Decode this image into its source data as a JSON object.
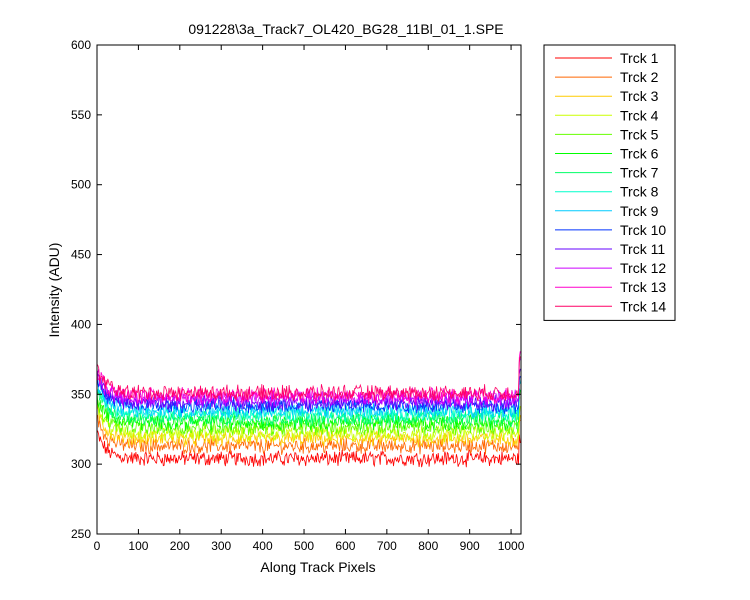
{
  "chart_data": {
    "type": "line",
    "title": "091228\\3a_Track7_OL420_BG28_11Bl_01_1.SPE",
    "xlabel": "Along Track Pixels",
    "ylabel": "Intensity (ADU)",
    "xlim": [
      0,
      1024
    ],
    "ylim": [
      250,
      600
    ],
    "xticks": [
      "0",
      "100",
      "200",
      "300",
      "400",
      "500",
      "600",
      "700",
      "800",
      "900",
      "1000"
    ],
    "yticks": [
      "250",
      "300",
      "350",
      "400",
      "450",
      "500",
      "550",
      "600"
    ],
    "legend_position": "outside-top-right",
    "grid": false,
    "series": [
      {
        "name": "Trck 1",
        "color": "#ff0000",
        "baseline": 304,
        "start": 322
      },
      {
        "name": "Trck 2",
        "color": "#ff6600",
        "baseline": 313,
        "start": 333
      },
      {
        "name": "Trck 3",
        "color": "#ffcc00",
        "baseline": 318,
        "start": 338
      },
      {
        "name": "Trck 4",
        "color": "#ccff00",
        "baseline": 322,
        "start": 342
      },
      {
        "name": "Trck 5",
        "color": "#66ff00",
        "baseline": 326,
        "start": 346
      },
      {
        "name": "Trck 6",
        "color": "#00ff00",
        "baseline": 330,
        "start": 350
      },
      {
        "name": "Trck 7",
        "color": "#00ff66",
        "baseline": 333,
        "start": 353
      },
      {
        "name": "Trck 8",
        "color": "#00ffcc",
        "baseline": 336,
        "start": 356
      },
      {
        "name": "Trck 9",
        "color": "#00ccff",
        "baseline": 339,
        "start": 359
      },
      {
        "name": "Trck 10",
        "color": "#0033ff",
        "baseline": 342,
        "start": 362
      },
      {
        "name": "Trck 11",
        "color": "#6600ff",
        "baseline": 344,
        "start": 364
      },
      {
        "name": "Trck 12",
        "color": "#cc00ff",
        "baseline": 347,
        "start": 366
      },
      {
        "name": "Trck 13",
        "color": "#ff00cc",
        "baseline": 349,
        "start": 368
      },
      {
        "name": "Trck 14",
        "color": "#ff0066",
        "baseline": 351,
        "start": 370
      }
    ]
  }
}
